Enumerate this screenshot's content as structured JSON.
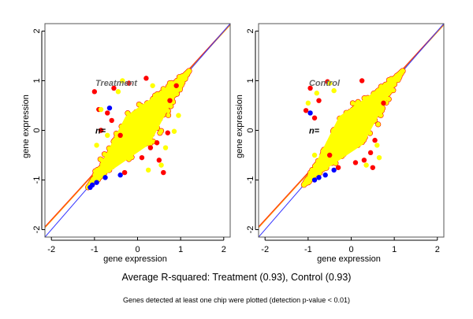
{
  "figure": {
    "main_caption": "Average R-squared: Treatment (0.93), Control (0.93)",
    "sub_caption": "Genes detected at least one chip were plotted (detection p-value < 0.01)"
  },
  "colors": {
    "point_main": "#ffff00",
    "point_outlier_high": "#ff0000",
    "point_outlier_low": "#0000ff",
    "line_identity": "#3333ff",
    "line_fit_orange": "#ff8c00",
    "line_fit_red": "#ff2200",
    "axis": "#000000",
    "panel_label": "#666666"
  },
  "chart_data": [
    {
      "type": "scatter",
      "title": "",
      "panel_label": "Treatment",
      "n_label": "n=",
      "xlabel": "gene expression",
      "ylabel": "gene expression",
      "xlim": [
        -2.15,
        2.15
      ],
      "ylim": [
        -2.15,
        2.15
      ],
      "xticks": [
        -2,
        -1,
        0,
        1,
        2
      ],
      "yticks": [
        -2,
        -1,
        0,
        1,
        2
      ],
      "xtick_labels": [
        "-2",
        "-1",
        "0",
        "1",
        "2"
      ],
      "ytick_labels": [
        "-2",
        "-1",
        "0",
        "1",
        "2"
      ],
      "grid": false,
      "r_squared": 0.93,
      "cloud": {
        "x_range": [
          -1.15,
          1.2
        ],
        "y_range": [
          -1.15,
          1.2
        ],
        "spread": 0.42
      },
      "lines": [
        {
          "name": "identity",
          "slope": 1.0,
          "intercept": 0.0
        },
        {
          "name": "fit",
          "slope": 0.95,
          "intercept": 0.08
        }
      ],
      "outliers_red": [
        [
          -1.0,
          0.78
        ],
        [
          -0.55,
          0.85
        ],
        [
          -0.9,
          0.42
        ],
        [
          -0.7,
          0.35
        ],
        [
          0.3,
          -0.35
        ],
        [
          0.45,
          -0.25
        ],
        [
          0.7,
          -0.05
        ],
        [
          -0.2,
          0.95
        ],
        [
          0.1,
          -0.55
        ],
        [
          -0.4,
          -0.1
        ],
        [
          -0.3,
          -0.85
        ],
        [
          0.5,
          -0.6
        ],
        [
          0.75,
          0.6
        ],
        [
          0.9,
          0.9
        ],
        [
          0.2,
          1.05
        ],
        [
          -0.6,
          0.2
        ],
        [
          -0.85,
          0.0
        ],
        [
          0.6,
          -0.85
        ]
      ],
      "outliers_yellow": [
        [
          -0.45,
          0.78
        ],
        [
          -0.85,
          0.42
        ],
        [
          0.85,
          -0.02
        ],
        [
          0.95,
          0.3
        ],
        [
          0.65,
          -0.35
        ],
        [
          0.55,
          -0.7
        ],
        [
          -0.7,
          -0.1
        ],
        [
          0.25,
          -0.8
        ],
        [
          -0.35,
          1.0
        ],
        [
          0.35,
          0.9
        ],
        [
          -0.95,
          -0.3
        ]
      ],
      "outliers_blue": [
        [
          -1.1,
          -1.15
        ],
        [
          -1.05,
          -1.1
        ],
        [
          -0.95,
          -1.05
        ],
        [
          -0.75,
          -0.95
        ],
        [
          -0.4,
          -0.9
        ],
        [
          -0.65,
          0.45
        ]
      ]
    },
    {
      "type": "scatter",
      "title": "",
      "panel_label": "Control",
      "n_label": "n=",
      "xlabel": "gene expression",
      "ylabel": "gene expression",
      "xlim": [
        -2.15,
        2.15
      ],
      "ylim": [
        -2.15,
        2.15
      ],
      "xticks": [
        -2,
        -1,
        0,
        1,
        2
      ],
      "yticks": [
        -2,
        -1,
        0,
        1,
        2
      ],
      "xtick_labels": [
        "-2",
        "-1",
        "0",
        "1",
        "2"
      ],
      "ytick_labels": [
        "-2",
        "-1",
        "0",
        "1",
        "2"
      ],
      "grid": false,
      "r_squared": 0.93,
      "cloud": {
        "x_range": [
          -1.1,
          1.2
        ],
        "y_range": [
          -1.1,
          1.2
        ],
        "spread": 0.42
      },
      "lines": [
        {
          "name": "identity",
          "slope": 1.0,
          "intercept": 0.0
        },
        {
          "name": "fit",
          "slope": 0.95,
          "intercept": 0.08
        }
      ],
      "outliers_red": [
        [
          -0.95,
          0.85
        ],
        [
          -0.55,
          0.98
        ],
        [
          -1.05,
          0.4
        ],
        [
          -0.75,
          0.6
        ],
        [
          0.3,
          -0.6
        ],
        [
          0.45,
          -0.45
        ],
        [
          0.55,
          -0.2
        ],
        [
          -0.3,
          -0.75
        ],
        [
          0.1,
          -0.65
        ],
        [
          -0.85,
          0.25
        ],
        [
          0.75,
          0.55
        ],
        [
          0.25,
          1.0
        ],
        [
          -0.5,
          -0.5
        ],
        [
          0.5,
          -0.75
        ]
      ],
      "outliers_yellow": [
        [
          -0.5,
          0.95
        ],
        [
          -0.8,
          0.75
        ],
        [
          -1.0,
          0.55
        ],
        [
          0.6,
          -0.3
        ],
        [
          0.35,
          -0.7
        ],
        [
          -0.85,
          -0.5
        ],
        [
          0.65,
          -0.55
        ],
        [
          -0.4,
          0.8
        ]
      ],
      "outliers_blue": [
        [
          -0.85,
          -1.0
        ],
        [
          -0.75,
          -0.95
        ],
        [
          -0.6,
          -0.9
        ],
        [
          -0.4,
          -0.8
        ],
        [
          -0.95,
          0.35
        ]
      ]
    }
  ]
}
